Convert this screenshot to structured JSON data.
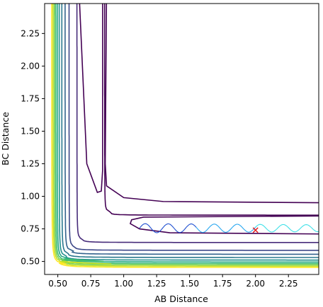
{
  "chart_data": {
    "type": "contour",
    "title": "",
    "xlabel": "AB Distance",
    "ylabel": "BC Distance",
    "xlim": [
      0.4,
      2.48
    ],
    "ylim": [
      0.4,
      2.48
    ],
    "xticks": [
      "0.50",
      "0.75",
      "1.00",
      "1.25",
      "1.50",
      "1.75",
      "2.00",
      "2.25"
    ],
    "yticks": [
      "0.50",
      "0.75",
      "1.00",
      "1.25",
      "1.50",
      "1.75",
      "2.00",
      "2.25"
    ],
    "colormap": "viridis",
    "contour_levels": [
      {
        "corner": [
          0.87,
          0.87
        ],
        "color": "#440154"
      },
      {
        "corner": [
          0.66,
          0.66
        ],
        "color": "#472c7a"
      },
      {
        "corner": [
          0.6,
          0.6
        ],
        "color": "#3e4989"
      },
      {
        "corner": [
          0.57,
          0.57
        ],
        "color": "#33638d"
      },
      {
        "corner": [
          0.545,
          0.545
        ],
        "color": "#2a788e"
      },
      {
        "corner": [
          0.525,
          0.525
        ],
        "color": "#21908d"
      },
      {
        "corner": [
          0.51,
          0.51
        ],
        "color": "#22a884"
      },
      {
        "corner": [
          0.498,
          0.498
        ],
        "color": "#42be71"
      },
      {
        "corner": [
          0.488,
          0.488
        ],
        "color": "#7ad151"
      },
      {
        "corner": [
          0.478,
          0.478
        ],
        "color": "#bddf26"
      },
      {
        "corner": [
          0.468,
          0.468
        ],
        "color": "#fde725"
      }
    ],
    "trajectory_colors": [
      "#1f4fd0",
      "#2aa8f0",
      "#40e0e8"
    ],
    "marker": {
      "x": 2.0,
      "y": 0.74,
      "symbol": "x",
      "color": "#e31a1c"
    },
    "grid": false,
    "legend": "none"
  }
}
